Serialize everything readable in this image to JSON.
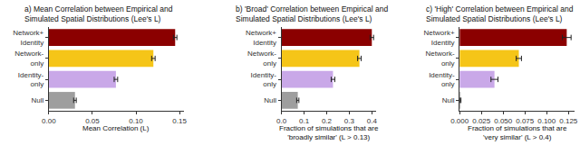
{
  "chart_data": [
    {
      "type": "bar",
      "orientation": "horizontal",
      "grid": false,
      "title": "a) Mean Correlation between Empirical and\nSimulated Spatial Distributions (Lee's L)",
      "xlabel": "Mean Correlation (L)",
      "categories": [
        "Network+\nIdentity",
        "Network-\nonly",
        "Identity-\nonly",
        "Null"
      ],
      "values": [
        0.145,
        0.12,
        0.077,
        0.03
      ],
      "errors": [
        0.002,
        0.002,
        0.002,
        0.0015
      ],
      "colors": [
        "#8b0000",
        "#f5c518",
        "#c9a8e8",
        "#9e9e9e"
      ],
      "xlim": [
        0,
        0.155
      ],
      "xticks": [
        {
          "value": 0,
          "label": "0.00"
        },
        0.05,
        {
          "value": 0.1,
          "label": "0.10"
        },
        0.15
      ]
    },
    {
      "type": "bar",
      "orientation": "horizontal",
      "grid": false,
      "title": "b) 'Broad' Correlation between Empirical and\nSimulated Spatial Distributions (Lee's L)",
      "xlabel": "Fraction of simulations that are\n'broadly similar' (L > 0.13)",
      "categories": [
        "Network+\nIdentity",
        "Network-\nonly",
        "Identity-\nonly",
        "Null"
      ],
      "values": [
        0.4,
        0.345,
        0.228,
        0.072
      ],
      "errors": [
        0.008,
        0.008,
        0.008,
        0.005
      ],
      "colors": [
        "#8b0000",
        "#f5c518",
        "#c9a8e8",
        "#9e9e9e"
      ],
      "xlim": [
        0,
        0.42
      ],
      "xticks": [
        {
          "value": 0,
          "label": "0.0"
        },
        0.1,
        0.2,
        0.3,
        0.4
      ]
    },
    {
      "type": "bar",
      "orientation": "horizontal",
      "grid": false,
      "title": "c) 'High' Correlation between Empirical and\nSimulated Spatial Distributions (Lee's L)",
      "xlabel": "Fraction of simulations that are\n'very similar' (L > 0.4)",
      "categories": [
        "Network+\nIdentity",
        "Network-\nonly",
        "Identity-\nonly",
        "Null"
      ],
      "values": [
        0.123,
        0.068,
        0.04,
        0.001
      ],
      "errors": [
        0.005,
        0.003,
        0.004,
        0.0005
      ],
      "colors": [
        "#8b0000",
        "#f5c518",
        "#c9a8e8",
        "#9e9e9e"
      ],
      "xlim": [
        0,
        0.132
      ],
      "xticks": [
        {
          "value": 0,
          "label": "0.000"
        },
        0.025,
        {
          "value": 0.05,
          "label": "0.050"
        },
        0.075,
        {
          "value": 0.1,
          "label": "0.100"
        },
        0.125
      ]
    }
  ]
}
